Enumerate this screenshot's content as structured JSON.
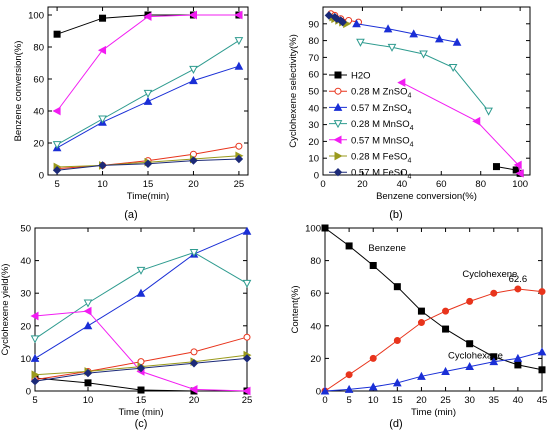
{
  "chart_data": [
    {
      "id": "a",
      "type": "line",
      "caption": "(a)",
      "xlabel": "Time(min)",
      "ylabel": "Benzene conversion(%)",
      "xlim": [
        4,
        26
      ],
      "ylim": [
        0,
        105
      ],
      "xticks": [
        5,
        10,
        15,
        20,
        25
      ],
      "yticks": [
        0,
        20,
        40,
        60,
        80,
        100
      ],
      "x": [
        5,
        10,
        15,
        20,
        25
      ],
      "series": [
        {
          "key": "h2o",
          "color": "#000000",
          "marker": "square",
          "values": [
            88,
            98,
            100,
            100,
            100
          ]
        },
        {
          "key": "zn028",
          "color": "#e8341c",
          "marker": "circle-open",
          "values": [
            4,
            6,
            9,
            13,
            18
          ]
        },
        {
          "key": "zn057",
          "color": "#1a2fd6",
          "marker": "triangle",
          "values": [
            17,
            33,
            46,
            59,
            68
          ]
        },
        {
          "key": "mn028",
          "color": "#2e9b8f",
          "marker": "triangle-down-open",
          "values": [
            19,
            35,
            51,
            66,
            84
          ]
        },
        {
          "key": "mn057",
          "color": "#f21cf2",
          "marker": "triangle-left",
          "values": [
            40,
            78,
            99,
            100,
            100
          ]
        },
        {
          "key": "fe028",
          "color": "#9a9a1c",
          "marker": "triangle-right",
          "values": [
            5,
            6,
            8,
            10,
            12
          ]
        },
        {
          "key": "fe057",
          "color": "#1c2a78",
          "marker": "diamond",
          "values": [
            3,
            6,
            7,
            9,
            10
          ]
        }
      ]
    },
    {
      "id": "b",
      "type": "line",
      "caption": "(b)",
      "xlabel": "Benzene conversion(%)",
      "ylabel": "Cyclohexene selectivity(%)",
      "xlim": [
        0,
        105
      ],
      "ylim": [
        0,
        100
      ],
      "xticks": [
        0,
        20,
        40,
        60,
        80,
        100
      ],
      "yticks": [
        0,
        10,
        20,
        30,
        40,
        50,
        60,
        70,
        80,
        90
      ],
      "legend_position": "lower-left",
      "series": [
        {
          "key": "h2o",
          "name": "H2O",
          "color": "#000000",
          "marker": "square",
          "x": [
            88,
            98,
            100
          ],
          "y": [
            5,
            3,
            1
          ]
        },
        {
          "key": "zn028",
          "name": "0.28 M ZnSO",
          "sub": "4",
          "color": "#e8341c",
          "marker": "circle-open",
          "x": [
            4,
            6,
            9,
            13,
            18
          ],
          "y": [
            96,
            95,
            93,
            92,
            91
          ]
        },
        {
          "key": "zn057",
          "name": "0.57 M ZnSO",
          "sub": "4",
          "color": "#1a2fd6",
          "marker": "triangle",
          "x": [
            17,
            33,
            46,
            59,
            68
          ],
          "y": [
            90,
            87,
            84,
            81,
            79
          ]
        },
        {
          "key": "mn028",
          "name": "0.28 M MnSO",
          "sub": "4",
          "color": "#2e9b8f",
          "marker": "triangle-down-open",
          "x": [
            19,
            35,
            51,
            66,
            84
          ],
          "y": [
            79,
            76,
            72,
            64,
            38
          ]
        },
        {
          "key": "mn057",
          "name": "0.57 M MnSO",
          "sub": "4",
          "color": "#f21cf2",
          "marker": "triangle-left",
          "x": [
            40,
            78,
            99,
            100
          ],
          "y": [
            55,
            32,
            6,
            1
          ]
        },
        {
          "key": "fe028",
          "name": "0.28 M FeSO",
          "sub": "4",
          "color": "#9a9a1c",
          "marker": "triangle-right",
          "x": [
            5,
            6,
            8,
            10,
            12
          ],
          "y": [
            94,
            93,
            92,
            91,
            90
          ]
        },
        {
          "key": "fe057",
          "name": "0.57 M FeSO",
          "sub": "4",
          "color": "#1c2a78",
          "marker": "diamond",
          "x": [
            3,
            6,
            7,
            9,
            10
          ],
          "y": [
            95,
            94,
            93,
            92,
            91
          ]
        }
      ]
    },
    {
      "id": "c",
      "type": "line",
      "caption": "(c)",
      "xlabel": "Time (min)",
      "ylabel": "Cyclohexene yield(%)",
      "xlim": [
        5,
        25
      ],
      "ylim": [
        0,
        50
      ],
      "xticks": [
        5,
        10,
        15,
        20,
        25
      ],
      "yticks": [
        0,
        10,
        20,
        30,
        40,
        50
      ],
      "x": [
        5,
        10,
        15,
        20,
        25
      ],
      "series": [
        {
          "key": "h2o",
          "color": "#000000",
          "marker": "square",
          "values": [
            4,
            2.5,
            0.3,
            0,
            0
          ]
        },
        {
          "key": "zn028",
          "color": "#e8341c",
          "marker": "circle-open",
          "values": [
            3.5,
            6,
            9,
            12,
            16.5
          ]
        },
        {
          "key": "zn057",
          "color": "#1a2fd6",
          "marker": "triangle",
          "values": [
            10,
            20,
            30,
            42,
            49
          ]
        },
        {
          "key": "mn028",
          "color": "#2e9b8f",
          "marker": "triangle-down-open",
          "values": [
            16,
            27,
            37,
            42.5,
            33
          ]
        },
        {
          "key": "mn057",
          "color": "#f21cf2",
          "marker": "triangle-left",
          "values": [
            23,
            24.5,
            6,
            0.5,
            0
          ]
        },
        {
          "key": "fe028",
          "color": "#9a9a1c",
          "marker": "triangle-right",
          "values": [
            5,
            6,
            7.5,
            9,
            11
          ]
        },
        {
          "key": "fe057",
          "color": "#1c2a78",
          "marker": "diamond",
          "values": [
            3,
            5.5,
            7,
            8.5,
            10
          ]
        }
      ]
    },
    {
      "id": "d",
      "type": "line",
      "caption": "(d)",
      "xlabel": "Time (min)",
      "ylabel": "Content(%)",
      "xlim": [
        0,
        45
      ],
      "ylim": [
        0,
        100
      ],
      "xticks": [
        0,
        5,
        10,
        15,
        20,
        25,
        30,
        35,
        40,
        45
      ],
      "yticks": [
        0,
        20,
        40,
        60,
        80,
        100
      ],
      "x": [
        0,
        5,
        10,
        15,
        20,
        25,
        30,
        35,
        40,
        45
      ],
      "annotation": "62.6",
      "series": [
        {
          "key": "benzene",
          "name": "Benzene",
          "color": "#000000",
          "marker": "square",
          "values": [
            100,
            89,
            77,
            64,
            49,
            38,
            29,
            21,
            16,
            13
          ]
        },
        {
          "key": "cyclohexene",
          "name": "Cyclohexene",
          "color": "#e8341c",
          "marker": "circle",
          "values": [
            0,
            10,
            20,
            31,
            42,
            49,
            55,
            60,
            62.6,
            61
          ]
        },
        {
          "key": "cyclohexane",
          "name": "Cyclohexane",
          "color": "#1a2fd6",
          "marker": "triangle",
          "values": [
            0,
            1,
            2.5,
            5,
            9,
            12,
            15,
            18,
            20,
            24
          ]
        }
      ]
    }
  ]
}
